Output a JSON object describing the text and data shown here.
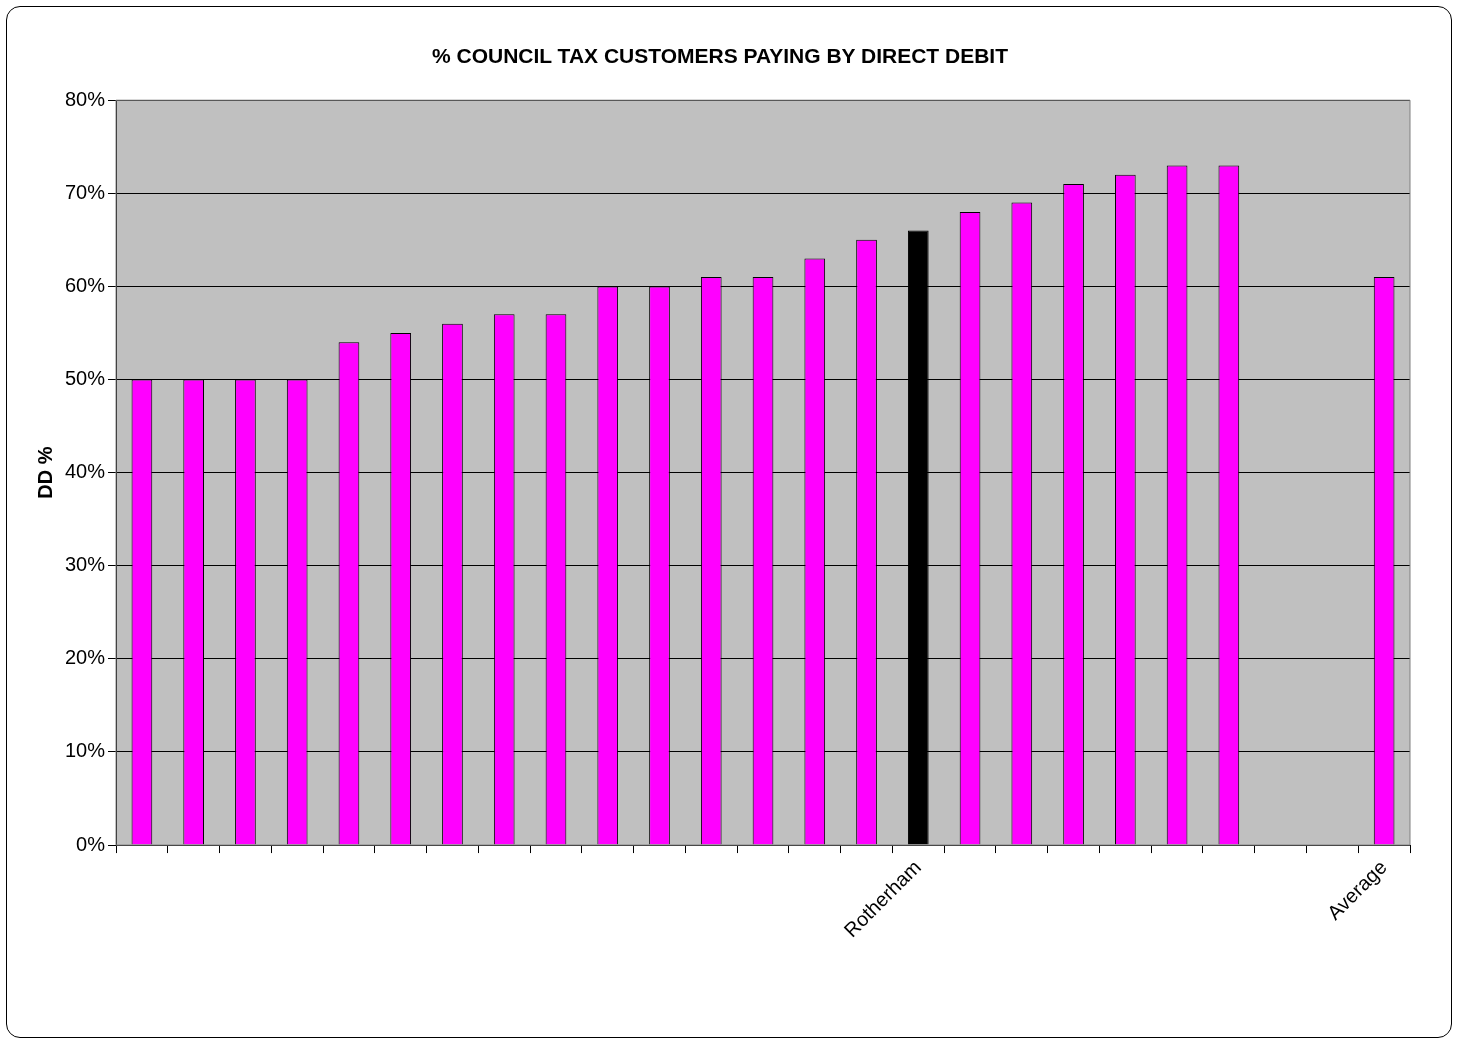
{
  "chart_data": {
    "type": "bar",
    "title": "% COUNCIL TAX CUSTOMERS PAYING BY DIRECT DEBIT",
    "ylabel": "DD %",
    "categories": [
      null,
      null,
      null,
      null,
      null,
      null,
      null,
      null,
      null,
      null,
      null,
      null,
      null,
      null,
      null,
      "Rotherham",
      null,
      null,
      null,
      null,
      null,
      null,
      null,
      null,
      "Average"
    ],
    "values": [
      50,
      50,
      50,
      50,
      54,
      55,
      56,
      57,
      57,
      60,
      60,
      61,
      61,
      63,
      65,
      66,
      68,
      69,
      71,
      72,
      73,
      73,
      null,
      null,
      61
    ],
    "colors": [
      "#ff00ff",
      "#ff00ff",
      "#ff00ff",
      "#ff00ff",
      "#ff00ff",
      "#ff00ff",
      "#ff00ff",
      "#ff00ff",
      "#ff00ff",
      "#ff00ff",
      "#ff00ff",
      "#ff00ff",
      "#ff00ff",
      "#ff00ff",
      "#ff00ff",
      "#000000",
      "#ff00ff",
      "#ff00ff",
      "#ff00ff",
      "#ff00ff",
      "#ff00ff",
      "#ff00ff",
      "#ff00ff",
      "#ff00ff",
      "#ff00ff"
    ],
    "ylim": [
      0,
      80
    ],
    "yticks": [
      {
        "value": 0,
        "label": "0%"
      },
      {
        "value": 10,
        "label": "10%"
      },
      {
        "value": 20,
        "label": "20%"
      },
      {
        "value": 30,
        "label": "30%"
      },
      {
        "value": 40,
        "label": "40%"
      },
      {
        "value": 50,
        "label": "50%"
      },
      {
        "value": 60,
        "label": "60%"
      },
      {
        "value": 70,
        "label": "70%"
      },
      {
        "value": 80,
        "label": "80%"
      }
    ],
    "grid": "y",
    "legend": false
  }
}
